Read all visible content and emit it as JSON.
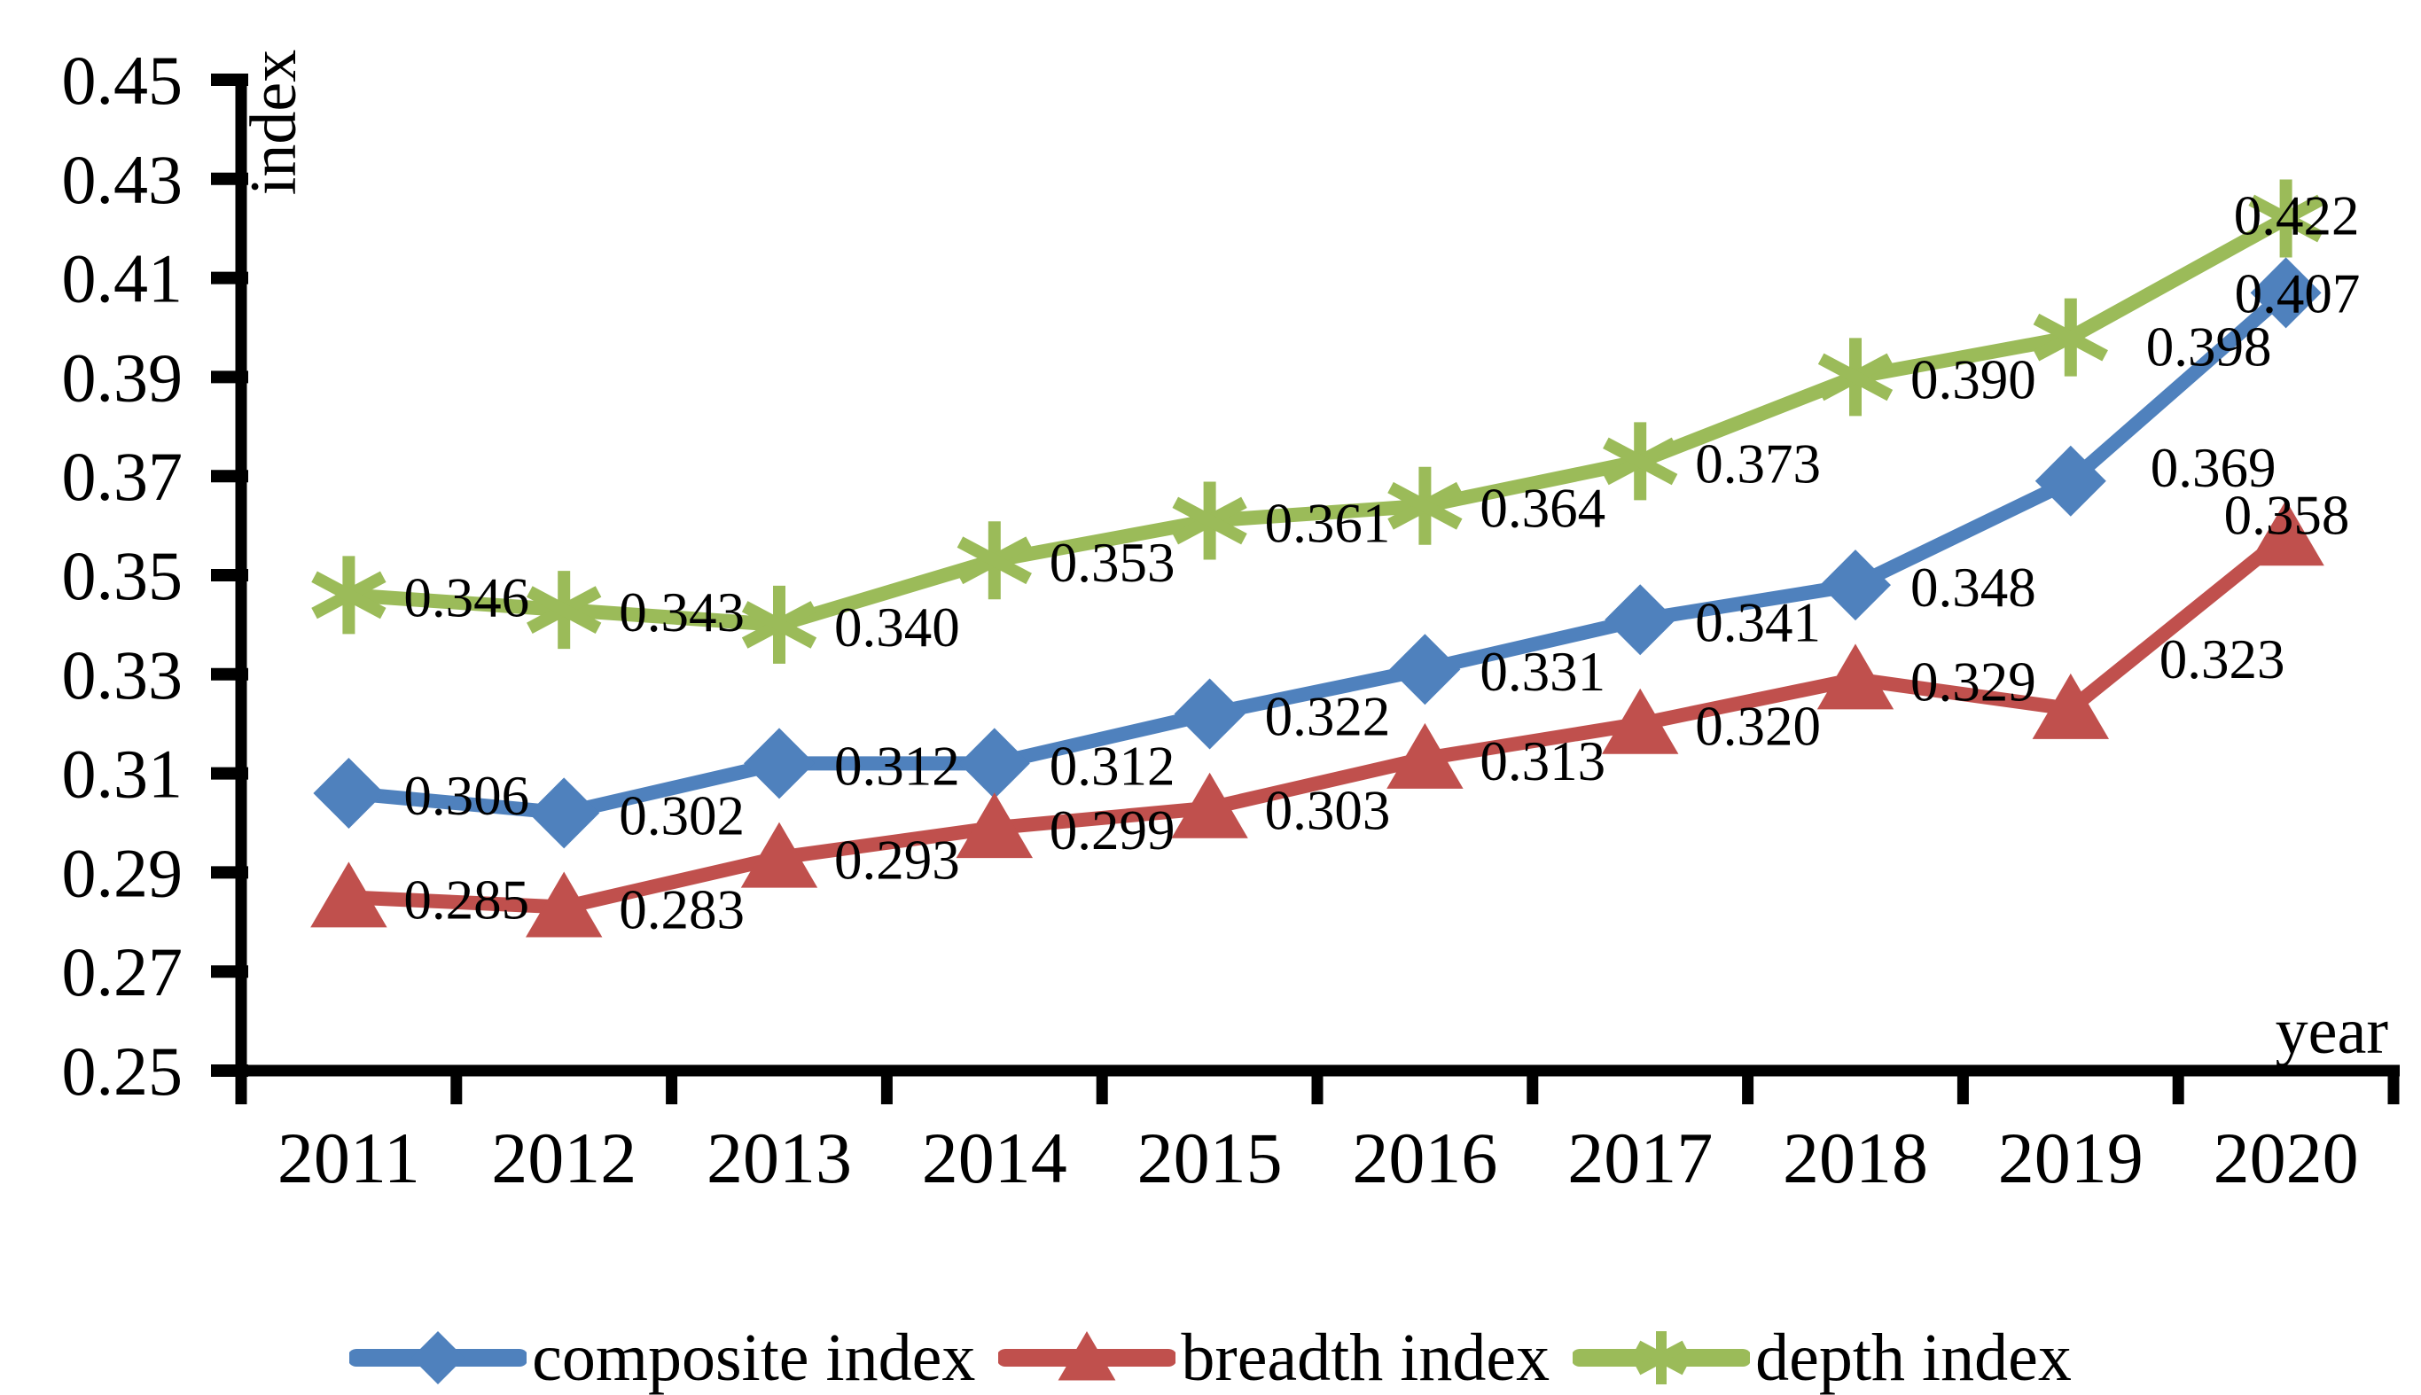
{
  "chart_data": {
    "type": "line",
    "title": "",
    "xlabel": "year",
    "ylabel": "index",
    "x_categories": [
      "2011",
      "2012",
      "2013",
      "2014",
      "2015",
      "2016",
      "2017",
      "2018",
      "2019",
      "2020"
    ],
    "ylim": [
      0.25,
      0.45
    ],
    "ytick_step": 0.02,
    "ytick_labels": [
      "0.45",
      "0.43",
      "0.41",
      "0.39",
      "0.37",
      "0.35",
      "0.33",
      "0.31",
      "0.29",
      "0.27",
      "0.25"
    ],
    "grid": false,
    "legend_position": "bottom",
    "axis_color": "#000000",
    "text_color": "#000000",
    "series": [
      {
        "name": "composite index",
        "color": "#4F81BD",
        "marker": "diamond",
        "values": [
          0.306,
          0.302,
          0.312,
          0.312,
          0.322,
          0.331,
          0.341,
          0.348,
          0.369,
          0.407
        ],
        "data_labels": [
          "0.306",
          "0.302",
          "0.312",
          "0.312",
          "0.322",
          "0.331",
          "0.341",
          "0.348",
          "0.369",
          "0.407"
        ]
      },
      {
        "name": "breadth index",
        "color": "#C0504D",
        "marker": "triangle",
        "values": [
          0.285,
          0.283,
          0.293,
          0.299,
          0.303,
          0.313,
          0.32,
          0.329,
          0.323,
          0.358
        ],
        "data_labels": [
          "0.285",
          "0.283",
          "0.293",
          "0.299",
          "0.303",
          "0.313",
          "0.320",
          "0.329",
          "0.323",
          "0.358"
        ]
      },
      {
        "name": "depth index",
        "color": "#9BBB59",
        "marker": "asterisk",
        "values": [
          0.346,
          0.343,
          0.34,
          0.353,
          0.361,
          0.364,
          0.373,
          0.39,
          0.398,
          0.422
        ],
        "data_labels": [
          "0.346",
          "0.343",
          "0.340",
          "0.353",
          "0.361",
          "0.364",
          "0.373",
          "0.390",
          "0.398",
          "0.422"
        ]
      }
    ]
  }
}
